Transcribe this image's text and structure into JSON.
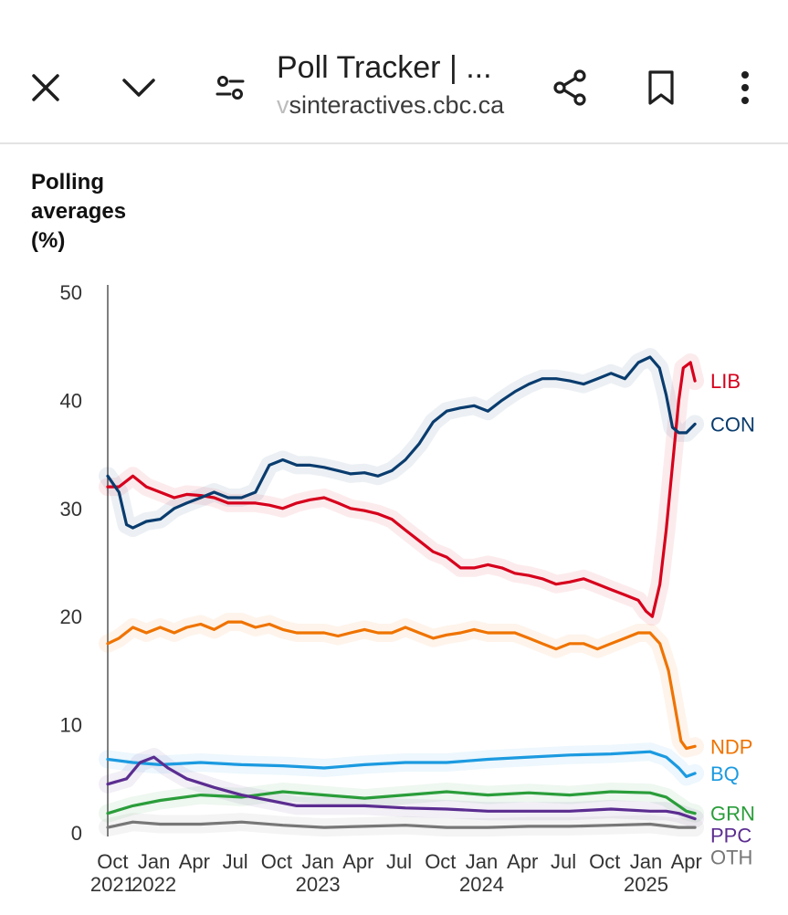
{
  "toolbar": {
    "title": "Poll Tracker | ...",
    "url_prefix": "v",
    "url": "sinteractives.cbc.ca",
    "icons": [
      "close-icon",
      "chevron-down-icon",
      "tune-icon",
      "share-icon",
      "bookmark-icon",
      "more-vert-icon"
    ]
  },
  "chart_heading_lines": [
    "Polling",
    "averages",
    "(%)"
  ],
  "chart_data": {
    "type": "line",
    "ylim": [
      0,
      50
    ],
    "yticks": [
      0,
      10,
      20,
      30,
      40,
      50
    ],
    "xlim": [
      "2021-09-20",
      "2025-04-28"
    ],
    "xtick_months": [
      "Oct",
      "Jan",
      "Apr",
      "Jul",
      "Oct",
      "Jan",
      "Apr",
      "Jul",
      "Oct",
      "Jan",
      "Apr",
      "Jul",
      "Oct",
      "Jan",
      "Apr"
    ],
    "xtick_dates": [
      "2021-10-01",
      "2022-01-01",
      "2022-04-01",
      "2022-07-01",
      "2022-10-01",
      "2023-01-01",
      "2023-04-01",
      "2023-07-01",
      "2023-10-01",
      "2024-01-01",
      "2024-04-01",
      "2024-07-01",
      "2024-10-01",
      "2025-01-01",
      "2025-04-01"
    ],
    "xtick_years": [
      {
        "label": "2021",
        "date": "2021-10-01"
      },
      {
        "label": "2022",
        "date": "2022-01-01"
      },
      {
        "label": "2023",
        "date": "2023-01-01"
      },
      {
        "label": "2024",
        "date": "2024-01-01"
      },
      {
        "label": "2025",
        "date": "2025-01-01"
      }
    ],
    "series": [
      {
        "name": "LIB",
        "color": "#d6001c",
        "points": [
          [
            "2021-09-20",
            32.0
          ],
          [
            "2021-10-15",
            32.0
          ],
          [
            "2021-11-15",
            33.0
          ],
          [
            "2021-12-15",
            32.0
          ],
          [
            "2022-01-15",
            31.5
          ],
          [
            "2022-02-15",
            31.0
          ],
          [
            "2022-03-15",
            31.3
          ],
          [
            "2022-04-15",
            31.2
          ],
          [
            "2022-05-15",
            31.0
          ],
          [
            "2022-06-15",
            30.5
          ],
          [
            "2022-07-15",
            30.5
          ],
          [
            "2022-08-15",
            30.5
          ],
          [
            "2022-09-15",
            30.3
          ],
          [
            "2022-10-15",
            30.0
          ],
          [
            "2022-11-15",
            30.5
          ],
          [
            "2022-12-15",
            30.8
          ],
          [
            "2023-01-15",
            31.0
          ],
          [
            "2023-02-15",
            30.5
          ],
          [
            "2023-03-15",
            30.0
          ],
          [
            "2023-04-15",
            29.8
          ],
          [
            "2023-05-15",
            29.5
          ],
          [
            "2023-06-15",
            29.0
          ],
          [
            "2023-07-15",
            28.0
          ],
          [
            "2023-08-15",
            27.0
          ],
          [
            "2023-09-15",
            26.0
          ],
          [
            "2023-10-15",
            25.5
          ],
          [
            "2023-11-15",
            24.5
          ],
          [
            "2023-12-15",
            24.5
          ],
          [
            "2024-01-15",
            24.8
          ],
          [
            "2024-02-15",
            24.5
          ],
          [
            "2024-03-15",
            24.0
          ],
          [
            "2024-04-15",
            23.8
          ],
          [
            "2024-05-15",
            23.5
          ],
          [
            "2024-06-15",
            23.0
          ],
          [
            "2024-07-15",
            23.2
          ],
          [
            "2024-08-15",
            23.5
          ],
          [
            "2024-09-15",
            23.0
          ],
          [
            "2024-10-15",
            22.5
          ],
          [
            "2024-11-15",
            22.0
          ],
          [
            "2024-12-15",
            21.5
          ],
          [
            "2025-01-01",
            20.5
          ],
          [
            "2025-01-15",
            20.0
          ],
          [
            "2025-02-01",
            23.0
          ],
          [
            "2025-02-15",
            28.0
          ],
          [
            "2025-03-01",
            34.0
          ],
          [
            "2025-03-15",
            40.0
          ],
          [
            "2025-03-25",
            43.0
          ],
          [
            "2025-04-10",
            43.5
          ],
          [
            "2025-04-20",
            41.8
          ]
        ]
      },
      {
        "name": "CON",
        "color": "#0a3c6e",
        "points": [
          [
            "2021-09-20",
            33.0
          ],
          [
            "2021-10-15",
            31.5
          ],
          [
            "2021-11-01",
            28.5
          ],
          [
            "2021-11-15",
            28.2
          ],
          [
            "2021-12-15",
            28.8
          ],
          [
            "2022-01-15",
            29.0
          ],
          [
            "2022-02-15",
            30.0
          ],
          [
            "2022-03-15",
            30.5
          ],
          [
            "2022-04-15",
            31.0
          ],
          [
            "2022-05-15",
            31.5
          ],
          [
            "2022-06-15",
            31.0
          ],
          [
            "2022-07-15",
            31.0
          ],
          [
            "2022-08-15",
            31.5
          ],
          [
            "2022-09-15",
            34.0
          ],
          [
            "2022-10-15",
            34.5
          ],
          [
            "2022-11-15",
            34.0
          ],
          [
            "2022-12-15",
            34.0
          ],
          [
            "2023-01-15",
            33.8
          ],
          [
            "2023-02-15",
            33.5
          ],
          [
            "2023-03-15",
            33.2
          ],
          [
            "2023-04-15",
            33.3
          ],
          [
            "2023-05-15",
            33.0
          ],
          [
            "2023-06-15",
            33.5
          ],
          [
            "2023-07-15",
            34.5
          ],
          [
            "2023-08-15",
            36.0
          ],
          [
            "2023-09-15",
            38.0
          ],
          [
            "2023-10-15",
            39.0
          ],
          [
            "2023-11-15",
            39.3
          ],
          [
            "2023-12-15",
            39.5
          ],
          [
            "2024-01-15",
            39.0
          ],
          [
            "2024-02-15",
            40.0
          ],
          [
            "2024-03-15",
            40.8
          ],
          [
            "2024-04-15",
            41.5
          ],
          [
            "2024-05-15",
            42.0
          ],
          [
            "2024-06-15",
            42.0
          ],
          [
            "2024-07-15",
            41.8
          ],
          [
            "2024-08-15",
            41.5
          ],
          [
            "2024-09-15",
            42.0
          ],
          [
            "2024-10-15",
            42.5
          ],
          [
            "2024-11-15",
            42.0
          ],
          [
            "2024-12-15",
            43.5
          ],
          [
            "2025-01-10",
            44.0
          ],
          [
            "2025-01-31",
            43.0
          ],
          [
            "2025-02-15",
            40.5
          ],
          [
            "2025-03-01",
            37.5
          ],
          [
            "2025-03-15",
            37.0
          ],
          [
            "2025-04-01",
            37.0
          ],
          [
            "2025-04-20",
            37.8
          ]
        ]
      },
      {
        "name": "NDP",
        "color": "#ef7300",
        "points": [
          [
            "2021-09-20",
            17.5
          ],
          [
            "2021-10-15",
            18.0
          ],
          [
            "2021-11-15",
            19.0
          ],
          [
            "2021-12-15",
            18.5
          ],
          [
            "2022-01-15",
            19.0
          ],
          [
            "2022-02-15",
            18.5
          ],
          [
            "2022-03-15",
            19.0
          ],
          [
            "2022-04-15",
            19.3
          ],
          [
            "2022-05-15",
            18.8
          ],
          [
            "2022-06-15",
            19.5
          ],
          [
            "2022-07-15",
            19.5
          ],
          [
            "2022-08-15",
            19.0
          ],
          [
            "2022-09-15",
            19.3
          ],
          [
            "2022-10-15",
            18.8
          ],
          [
            "2022-11-15",
            18.5
          ],
          [
            "2022-12-15",
            18.5
          ],
          [
            "2023-01-15",
            18.5
          ],
          [
            "2023-02-15",
            18.2
          ],
          [
            "2023-03-15",
            18.5
          ],
          [
            "2023-04-15",
            18.8
          ],
          [
            "2023-05-15",
            18.5
          ],
          [
            "2023-06-15",
            18.5
          ],
          [
            "2023-07-15",
            19.0
          ],
          [
            "2023-08-15",
            18.5
          ],
          [
            "2023-09-15",
            18.0
          ],
          [
            "2023-10-15",
            18.3
          ],
          [
            "2023-11-15",
            18.5
          ],
          [
            "2023-12-15",
            18.8
          ],
          [
            "2024-01-15",
            18.5
          ],
          [
            "2024-02-15",
            18.5
          ],
          [
            "2024-03-15",
            18.5
          ],
          [
            "2024-04-15",
            18.0
          ],
          [
            "2024-05-15",
            17.5
          ],
          [
            "2024-06-15",
            17.0
          ],
          [
            "2024-07-15",
            17.5
          ],
          [
            "2024-08-15",
            17.5
          ],
          [
            "2024-09-15",
            17.0
          ],
          [
            "2024-10-15",
            17.5
          ],
          [
            "2024-11-15",
            18.0
          ],
          [
            "2024-12-15",
            18.5
          ],
          [
            "2025-01-10",
            18.5
          ],
          [
            "2025-02-01",
            17.5
          ],
          [
            "2025-02-20",
            15.0
          ],
          [
            "2025-03-05",
            12.0
          ],
          [
            "2025-03-20",
            8.5
          ],
          [
            "2025-04-01",
            7.8
          ],
          [
            "2025-04-20",
            8.0
          ]
        ]
      },
      {
        "name": "BQ",
        "color": "#1b9ae0",
        "points": [
          [
            "2021-09-20",
            6.8
          ],
          [
            "2021-11-15",
            6.5
          ],
          [
            "2022-01-15",
            6.3
          ],
          [
            "2022-04-15",
            6.5
          ],
          [
            "2022-07-15",
            6.3
          ],
          [
            "2022-10-15",
            6.2
          ],
          [
            "2023-01-15",
            6.0
          ],
          [
            "2023-04-15",
            6.3
          ],
          [
            "2023-07-15",
            6.5
          ],
          [
            "2023-10-15",
            6.5
          ],
          [
            "2024-01-15",
            6.8
          ],
          [
            "2024-04-15",
            7.0
          ],
          [
            "2024-07-15",
            7.2
          ],
          [
            "2024-10-15",
            7.3
          ],
          [
            "2025-01-10",
            7.5
          ],
          [
            "2025-02-15",
            7.0
          ],
          [
            "2025-03-15",
            6.0
          ],
          [
            "2025-04-01",
            5.2
          ],
          [
            "2025-04-20",
            5.5
          ]
        ]
      },
      {
        "name": "GRN",
        "color": "#2a9d3a",
        "points": [
          [
            "2021-09-20",
            1.8
          ],
          [
            "2021-11-15",
            2.5
          ],
          [
            "2022-01-15",
            3.0
          ],
          [
            "2022-04-15",
            3.5
          ],
          [
            "2022-07-15",
            3.3
          ],
          [
            "2022-10-15",
            3.8
          ],
          [
            "2023-01-15",
            3.5
          ],
          [
            "2023-04-15",
            3.2
          ],
          [
            "2023-07-15",
            3.5
          ],
          [
            "2023-10-15",
            3.8
          ],
          [
            "2024-01-15",
            3.5
          ],
          [
            "2024-04-15",
            3.7
          ],
          [
            "2024-07-15",
            3.5
          ],
          [
            "2024-10-15",
            3.8
          ],
          [
            "2025-01-10",
            3.7
          ],
          [
            "2025-02-15",
            3.3
          ],
          [
            "2025-03-15",
            2.5
          ],
          [
            "2025-04-01",
            2.0
          ],
          [
            "2025-04-20",
            1.8
          ]
        ]
      },
      {
        "name": "PPC",
        "color": "#5b2d90",
        "points": [
          [
            "2021-09-20",
            4.5
          ],
          [
            "2021-11-01",
            5.0
          ],
          [
            "2021-12-01",
            6.5
          ],
          [
            "2022-01-01",
            7.0
          ],
          [
            "2022-02-01",
            6.0
          ],
          [
            "2022-03-15",
            5.0
          ],
          [
            "2022-05-15",
            4.2
          ],
          [
            "2022-07-15",
            3.5
          ],
          [
            "2022-09-15",
            3.0
          ],
          [
            "2022-11-15",
            2.5
          ],
          [
            "2023-01-15",
            2.5
          ],
          [
            "2023-04-15",
            2.5
          ],
          [
            "2023-07-15",
            2.3
          ],
          [
            "2023-10-15",
            2.2
          ],
          [
            "2024-01-15",
            2.0
          ],
          [
            "2024-04-15",
            2.0
          ],
          [
            "2024-07-15",
            2.0
          ],
          [
            "2024-10-15",
            2.2
          ],
          [
            "2025-01-10",
            2.0
          ],
          [
            "2025-02-15",
            2.0
          ],
          [
            "2025-03-15",
            1.8
          ],
          [
            "2025-04-20",
            1.3
          ]
        ]
      },
      {
        "name": "OTH",
        "color": "#777777",
        "points": [
          [
            "2021-09-20",
            0.5
          ],
          [
            "2021-11-15",
            1.0
          ],
          [
            "2022-01-15",
            0.8
          ],
          [
            "2022-04-15",
            0.8
          ],
          [
            "2022-07-15",
            1.0
          ],
          [
            "2022-10-15",
            0.7
          ],
          [
            "2023-01-15",
            0.5
          ],
          [
            "2023-04-15",
            0.6
          ],
          [
            "2023-07-15",
            0.7
          ],
          [
            "2023-10-15",
            0.5
          ],
          [
            "2024-01-15",
            0.5
          ],
          [
            "2024-04-15",
            0.6
          ],
          [
            "2024-07-15",
            0.6
          ],
          [
            "2024-10-15",
            0.7
          ],
          [
            "2025-01-10",
            0.8
          ],
          [
            "2025-03-15",
            0.5
          ],
          [
            "2025-04-20",
            0.5
          ]
        ]
      }
    ]
  }
}
